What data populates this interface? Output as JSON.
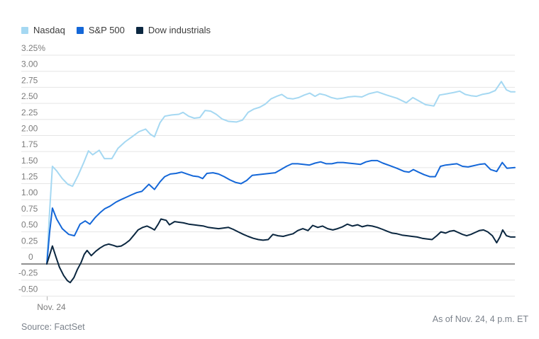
{
  "footer": {
    "source": "Source: FactSet",
    "as_of": "As of Nov. 24, 4 p.m. ET"
  },
  "palette": {
    "background": "#ffffff",
    "grid_line": "#e5e5e5",
    "zero_line": "#4d4d4d",
    "axis_text": "#7c7c7c",
    "legend_text": "#3b3b3b",
    "footer_text": "#7b828b",
    "nasdaq": "#a5d8f2",
    "sp500": "#1467d8",
    "dow": "#0b2740"
  },
  "chart_data": {
    "type": "line",
    "title": "",
    "unit": "%",
    "grid": true,
    "zero_line": true,
    "legend_position": "top-left",
    "ylim": [
      -0.5,
      3.25
    ],
    "ytick_step": 0.25,
    "yticks": [
      {
        "v": 3.25,
        "label": "3.25%"
      },
      {
        "v": 3.0,
        "label": "3.00"
      },
      {
        "v": 2.75,
        "label": "2.75"
      },
      {
        "v": 2.5,
        "label": "2.50"
      },
      {
        "v": 2.25,
        "label": "2.25"
      },
      {
        "v": 2.0,
        "label": "2.00"
      },
      {
        "v": 1.75,
        "label": "1.75"
      },
      {
        "v": 1.5,
        "label": "1.50"
      },
      {
        "v": 1.25,
        "label": "1.25"
      },
      {
        "v": 1.0,
        "label": "1.00"
      },
      {
        "v": 0.75,
        "label": "0.75"
      },
      {
        "v": 0.5,
        "label": "0.50"
      },
      {
        "v": 0.25,
        "label": "0.25"
      },
      {
        "v": 0,
        "label": "0",
        "x": 40
      },
      {
        "v": -0.25,
        "label": "-0.25",
        "x": 26
      },
      {
        "v": -0.5,
        "label": "-0.50",
        "x": 26
      }
    ],
    "x_axis": {
      "ticks": [
        {
          "frac": 0,
          "label": "Nov. 24"
        }
      ]
    },
    "series": [
      {
        "name": "Nasdaq",
        "color": "#a5d8f2",
        "points": [
          [
            0,
            0
          ],
          [
            0.005,
            0.7
          ],
          [
            0.012,
            1.52
          ],
          [
            0.021,
            1.45
          ],
          [
            0.033,
            1.33
          ],
          [
            0.045,
            1.24
          ],
          [
            0.055,
            1.21
          ],
          [
            0.067,
            1.38
          ],
          [
            0.079,
            1.58
          ],
          [
            0.089,
            1.76
          ],
          [
            0.098,
            1.7
          ],
          [
            0.112,
            1.77
          ],
          [
            0.123,
            1.64
          ],
          [
            0.139,
            1.64
          ],
          [
            0.152,
            1.8
          ],
          [
            0.167,
            1.9
          ],
          [
            0.182,
            1.98
          ],
          [
            0.197,
            2.06
          ],
          [
            0.211,
            2.1
          ],
          [
            0.221,
            2.02
          ],
          [
            0.23,
            1.98
          ],
          [
            0.242,
            2.2
          ],
          [
            0.252,
            2.3
          ],
          [
            0.267,
            2.32
          ],
          [
            0.282,
            2.33
          ],
          [
            0.291,
            2.36
          ],
          [
            0.303,
            2.3
          ],
          [
            0.315,
            2.27
          ],
          [
            0.327,
            2.28
          ],
          [
            0.338,
            2.39
          ],
          [
            0.35,
            2.38
          ],
          [
            0.362,
            2.33
          ],
          [
            0.374,
            2.26
          ],
          [
            0.388,
            2.22
          ],
          [
            0.405,
            2.21
          ],
          [
            0.418,
            2.24
          ],
          [
            0.43,
            2.36
          ],
          [
            0.442,
            2.41
          ],
          [
            0.455,
            2.44
          ],
          [
            0.467,
            2.49
          ],
          [
            0.479,
            2.57
          ],
          [
            0.491,
            2.61
          ],
          [
            0.502,
            2.64
          ],
          [
            0.514,
            2.58
          ],
          [
            0.526,
            2.57
          ],
          [
            0.538,
            2.59
          ],
          [
            0.55,
            2.63
          ],
          [
            0.562,
            2.66
          ],
          [
            0.573,
            2.61
          ],
          [
            0.583,
            2.65
          ],
          [
            0.595,
            2.63
          ],
          [
            0.608,
            2.59
          ],
          [
            0.62,
            2.57
          ],
          [
            0.632,
            2.58
          ],
          [
            0.644,
            2.6
          ],
          [
            0.658,
            2.61
          ],
          [
            0.673,
            2.6
          ],
          [
            0.688,
            2.65
          ],
          [
            0.706,
            2.68
          ],
          [
            0.726,
            2.63
          ],
          [
            0.748,
            2.58
          ],
          [
            0.768,
            2.51
          ],
          [
            0.782,
            2.59
          ],
          [
            0.797,
            2.53
          ],
          [
            0.809,
            2.48
          ],
          [
            0.827,
            2.46
          ],
          [
            0.839,
            2.63
          ],
          [
            0.855,
            2.65
          ],
          [
            0.87,
            2.67
          ],
          [
            0.882,
            2.69
          ],
          [
            0.894,
            2.64
          ],
          [
            0.906,
            2.62
          ],
          [
            0.918,
            2.61
          ],
          [
            0.93,
            2.64
          ],
          [
            0.945,
            2.66
          ],
          [
            0.958,
            2.7
          ],
          [
            0.971,
            2.84
          ],
          [
            0.982,
            2.71
          ],
          [
            0.991,
            2.68
          ],
          [
            1,
            2.68
          ]
        ]
      },
      {
        "name": "S&P 500",
        "color": "#1467d8",
        "points": [
          [
            0,
            0
          ],
          [
            0.006,
            0.5
          ],
          [
            0.012,
            0.87
          ],
          [
            0.021,
            0.7
          ],
          [
            0.033,
            0.55
          ],
          [
            0.047,
            0.46
          ],
          [
            0.059,
            0.44
          ],
          [
            0.071,
            0.62
          ],
          [
            0.082,
            0.67
          ],
          [
            0.092,
            0.62
          ],
          [
            0.103,
            0.72
          ],
          [
            0.114,
            0.8
          ],
          [
            0.124,
            0.86
          ],
          [
            0.135,
            0.9
          ],
          [
            0.147,
            0.96
          ],
          [
            0.158,
            1
          ],
          [
            0.17,
            1.04
          ],
          [
            0.182,
            1.08
          ],
          [
            0.192,
            1.11
          ],
          [
            0.203,
            1.13
          ],
          [
            0.218,
            1.24
          ],
          [
            0.23,
            1.16
          ],
          [
            0.242,
            1.28
          ],
          [
            0.252,
            1.36
          ],
          [
            0.264,
            1.4
          ],
          [
            0.276,
            1.41
          ],
          [
            0.288,
            1.43
          ],
          [
            0.3,
            1.4
          ],
          [
            0.312,
            1.37
          ],
          [
            0.324,
            1.36
          ],
          [
            0.333,
            1.33
          ],
          [
            0.342,
            1.41
          ],
          [
            0.355,
            1.42
          ],
          [
            0.367,
            1.4
          ],
          [
            0.379,
            1.36
          ],
          [
            0.391,
            1.31
          ],
          [
            0.403,
            1.27
          ],
          [
            0.415,
            1.25
          ],
          [
            0.427,
            1.3
          ],
          [
            0.439,
            1.38
          ],
          [
            0.452,
            1.39
          ],
          [
            0.464,
            1.4
          ],
          [
            0.476,
            1.41
          ],
          [
            0.488,
            1.42
          ],
          [
            0.5,
            1.47
          ],
          [
            0.512,
            1.52
          ],
          [
            0.524,
            1.56
          ],
          [
            0.536,
            1.56
          ],
          [
            0.548,
            1.55
          ],
          [
            0.561,
            1.54
          ],
          [
            0.573,
            1.57
          ],
          [
            0.585,
            1.59
          ],
          [
            0.597,
            1.56
          ],
          [
            0.609,
            1.56
          ],
          [
            0.621,
            1.58
          ],
          [
            0.633,
            1.58
          ],
          [
            0.645,
            1.57
          ],
          [
            0.658,
            1.56
          ],
          [
            0.67,
            1.55
          ],
          [
            0.682,
            1.59
          ],
          [
            0.694,
            1.61
          ],
          [
            0.706,
            1.61
          ],
          [
            0.718,
            1.57
          ],
          [
            0.733,
            1.53
          ],
          [
            0.748,
            1.49
          ],
          [
            0.764,
            1.44
          ],
          [
            0.774,
            1.43
          ],
          [
            0.783,
            1.47
          ],
          [
            0.794,
            1.43
          ],
          [
            0.806,
            1.39
          ],
          [
            0.818,
            1.36
          ],
          [
            0.83,
            1.36
          ],
          [
            0.841,
            1.52
          ],
          [
            0.852,
            1.54
          ],
          [
            0.864,
            1.55
          ],
          [
            0.876,
            1.56
          ],
          [
            0.888,
            1.52
          ],
          [
            0.9,
            1.51
          ],
          [
            0.912,
            1.53
          ],
          [
            0.924,
            1.55
          ],
          [
            0.936,
            1.56
          ],
          [
            0.948,
            1.47
          ],
          [
            0.961,
            1.44
          ],
          [
            0.973,
            1.58
          ],
          [
            0.983,
            1.49
          ],
          [
            1,
            1.5
          ]
        ]
      },
      {
        "name": "Dow industrials",
        "color": "#0b2740",
        "points": [
          [
            0,
            0
          ],
          [
            0.006,
            0.14
          ],
          [
            0.012,
            0.28
          ],
          [
            0.02,
            0.1
          ],
          [
            0.027,
            -0.05
          ],
          [
            0.036,
            -0.18
          ],
          [
            0.044,
            -0.26
          ],
          [
            0.05,
            -0.29
          ],
          [
            0.058,
            -0.21
          ],
          [
            0.065,
            -0.09
          ],
          [
            0.073,
            0.02
          ],
          [
            0.08,
            0.15
          ],
          [
            0.086,
            0.21
          ],
          [
            0.095,
            0.13
          ],
          [
            0.105,
            0.2
          ],
          [
            0.114,
            0.25
          ],
          [
            0.123,
            0.29
          ],
          [
            0.132,
            0.31
          ],
          [
            0.142,
            0.29
          ],
          [
            0.15,
            0.27
          ],
          [
            0.159,
            0.28
          ],
          [
            0.168,
            0.32
          ],
          [
            0.177,
            0.37
          ],
          [
            0.186,
            0.45
          ],
          [
            0.195,
            0.53
          ],
          [
            0.205,
            0.57
          ],
          [
            0.214,
            0.59
          ],
          [
            0.223,
            0.56
          ],
          [
            0.23,
            0.53
          ],
          [
            0.238,
            0.62
          ],
          [
            0.244,
            0.7
          ],
          [
            0.255,
            0.68
          ],
          [
            0.262,
            0.61
          ],
          [
            0.273,
            0.66
          ],
          [
            0.282,
            0.65
          ],
          [
            0.292,
            0.64
          ],
          [
            0.303,
            0.62
          ],
          [
            0.314,
            0.61
          ],
          [
            0.324,
            0.6
          ],
          [
            0.335,
            0.59
          ],
          [
            0.345,
            0.57
          ],
          [
            0.356,
            0.56
          ],
          [
            0.367,
            0.55
          ],
          [
            0.377,
            0.56
          ],
          [
            0.388,
            0.57
          ],
          [
            0.398,
            0.54
          ],
          [
            0.409,
            0.5
          ],
          [
            0.42,
            0.46
          ],
          [
            0.43,
            0.43
          ],
          [
            0.441,
            0.4
          ],
          [
            0.452,
            0.38
          ],
          [
            0.462,
            0.37
          ],
          [
            0.473,
            0.38
          ],
          [
            0.483,
            0.46
          ],
          [
            0.494,
            0.44
          ],
          [
            0.505,
            0.43
          ],
          [
            0.515,
            0.45
          ],
          [
            0.526,
            0.47
          ],
          [
            0.536,
            0.52
          ],
          [
            0.547,
            0.55
          ],
          [
            0.558,
            0.52
          ],
          [
            0.568,
            0.6
          ],
          [
            0.579,
            0.57
          ],
          [
            0.589,
            0.59
          ],
          [
            0.6,
            0.55
          ],
          [
            0.611,
            0.53
          ],
          [
            0.621,
            0.55
          ],
          [
            0.632,
            0.58
          ],
          [
            0.642,
            0.62
          ],
          [
            0.653,
            0.59
          ],
          [
            0.664,
            0.61
          ],
          [
            0.674,
            0.58
          ],
          [
            0.685,
            0.6
          ],
          [
            0.695,
            0.59
          ],
          [
            0.706,
            0.57
          ],
          [
            0.717,
            0.54
          ],
          [
            0.727,
            0.51
          ],
          [
            0.738,
            0.48
          ],
          [
            0.748,
            0.47
          ],
          [
            0.759,
            0.45
          ],
          [
            0.77,
            0.44
          ],
          [
            0.78,
            0.43
          ],
          [
            0.791,
            0.42
          ],
          [
            0.802,
            0.4
          ],
          [
            0.812,
            0.39
          ],
          [
            0.823,
            0.38
          ],
          [
            0.833,
            0.44
          ],
          [
            0.842,
            0.5
          ],
          [
            0.852,
            0.48
          ],
          [
            0.861,
            0.51
          ],
          [
            0.87,
            0.52
          ],
          [
            0.879,
            0.49
          ],
          [
            0.888,
            0.46
          ],
          [
            0.897,
            0.44
          ],
          [
            0.906,
            0.46
          ],
          [
            0.915,
            0.49
          ],
          [
            0.924,
            0.52
          ],
          [
            0.933,
            0.53
          ],
          [
            0.942,
            0.5
          ],
          [
            0.952,
            0.44
          ],
          [
            0.961,
            0.33
          ],
          [
            0.968,
            0.42
          ],
          [
            0.974,
            0.53
          ],
          [
            0.982,
            0.44
          ],
          [
            0.991,
            0.42
          ],
          [
            1,
            0.42
          ]
        ]
      }
    ]
  }
}
